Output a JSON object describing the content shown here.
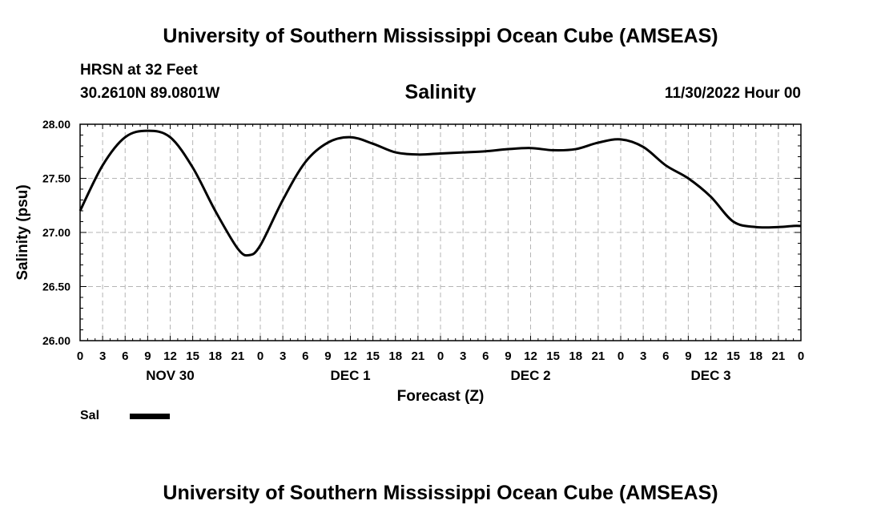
{
  "header": {
    "title_top": "University of Southern Mississippi Ocean Cube (AMSEAS)",
    "title_bottom": "University of Southern Mississippi Ocean Cube (AMSEAS)",
    "station": "HRSN at 32 Feet",
    "coordinates": "30.2610N  89.0801W",
    "subtitle": "Salinity",
    "run_time": "11/30/2022 Hour 00"
  },
  "legend": {
    "label": "Sal",
    "color": "#000000"
  },
  "chart_data": {
    "type": "line",
    "title": "Salinity",
    "xlabel": "Forecast (Z)",
    "ylabel": "Salinity (psu)",
    "ylim": [
      26.0,
      28.0
    ],
    "yticks": [
      "26.00",
      "26.50",
      "27.00",
      "27.50",
      "28.00"
    ],
    "xlim": [
      0,
      96
    ],
    "xtick_labels": [
      "0",
      "3",
      "6",
      "9",
      "12",
      "15",
      "18",
      "21",
      "0",
      "3",
      "6",
      "9",
      "12",
      "15",
      "18",
      "21",
      "0",
      "3",
      "6",
      "9",
      "12",
      "15",
      "18",
      "21",
      "0",
      "3",
      "6",
      "9",
      "12",
      "15",
      "18",
      "21",
      "0"
    ],
    "day_labels": [
      {
        "label": "NOV 30",
        "hour": 12
      },
      {
        "label": "DEC 1",
        "hour": 36
      },
      {
        "label": "DEC 2",
        "hour": 60
      },
      {
        "label": "DEC 3",
        "hour": 84
      }
    ],
    "grid": true,
    "series": [
      {
        "name": "Sal",
        "color": "#000000",
        "x": [
          0,
          3,
          6,
          9,
          12,
          15,
          18,
          21,
          22.5,
          24,
          27,
          30,
          33,
          36,
          39,
          42,
          45,
          48,
          51,
          54,
          57,
          60,
          63,
          66,
          69,
          72,
          75,
          78,
          81,
          84,
          87,
          90,
          93,
          95,
          96
        ],
        "y": [
          27.2,
          27.62,
          27.88,
          27.94,
          27.88,
          27.6,
          27.2,
          26.85,
          26.79,
          26.88,
          27.3,
          27.65,
          27.83,
          27.88,
          27.82,
          27.74,
          27.72,
          27.73,
          27.74,
          27.75,
          27.77,
          27.78,
          27.76,
          27.77,
          27.83,
          27.86,
          27.79,
          27.62,
          27.5,
          27.33,
          27.1,
          27.05,
          27.05,
          27.06,
          27.06
        ]
      }
    ]
  }
}
